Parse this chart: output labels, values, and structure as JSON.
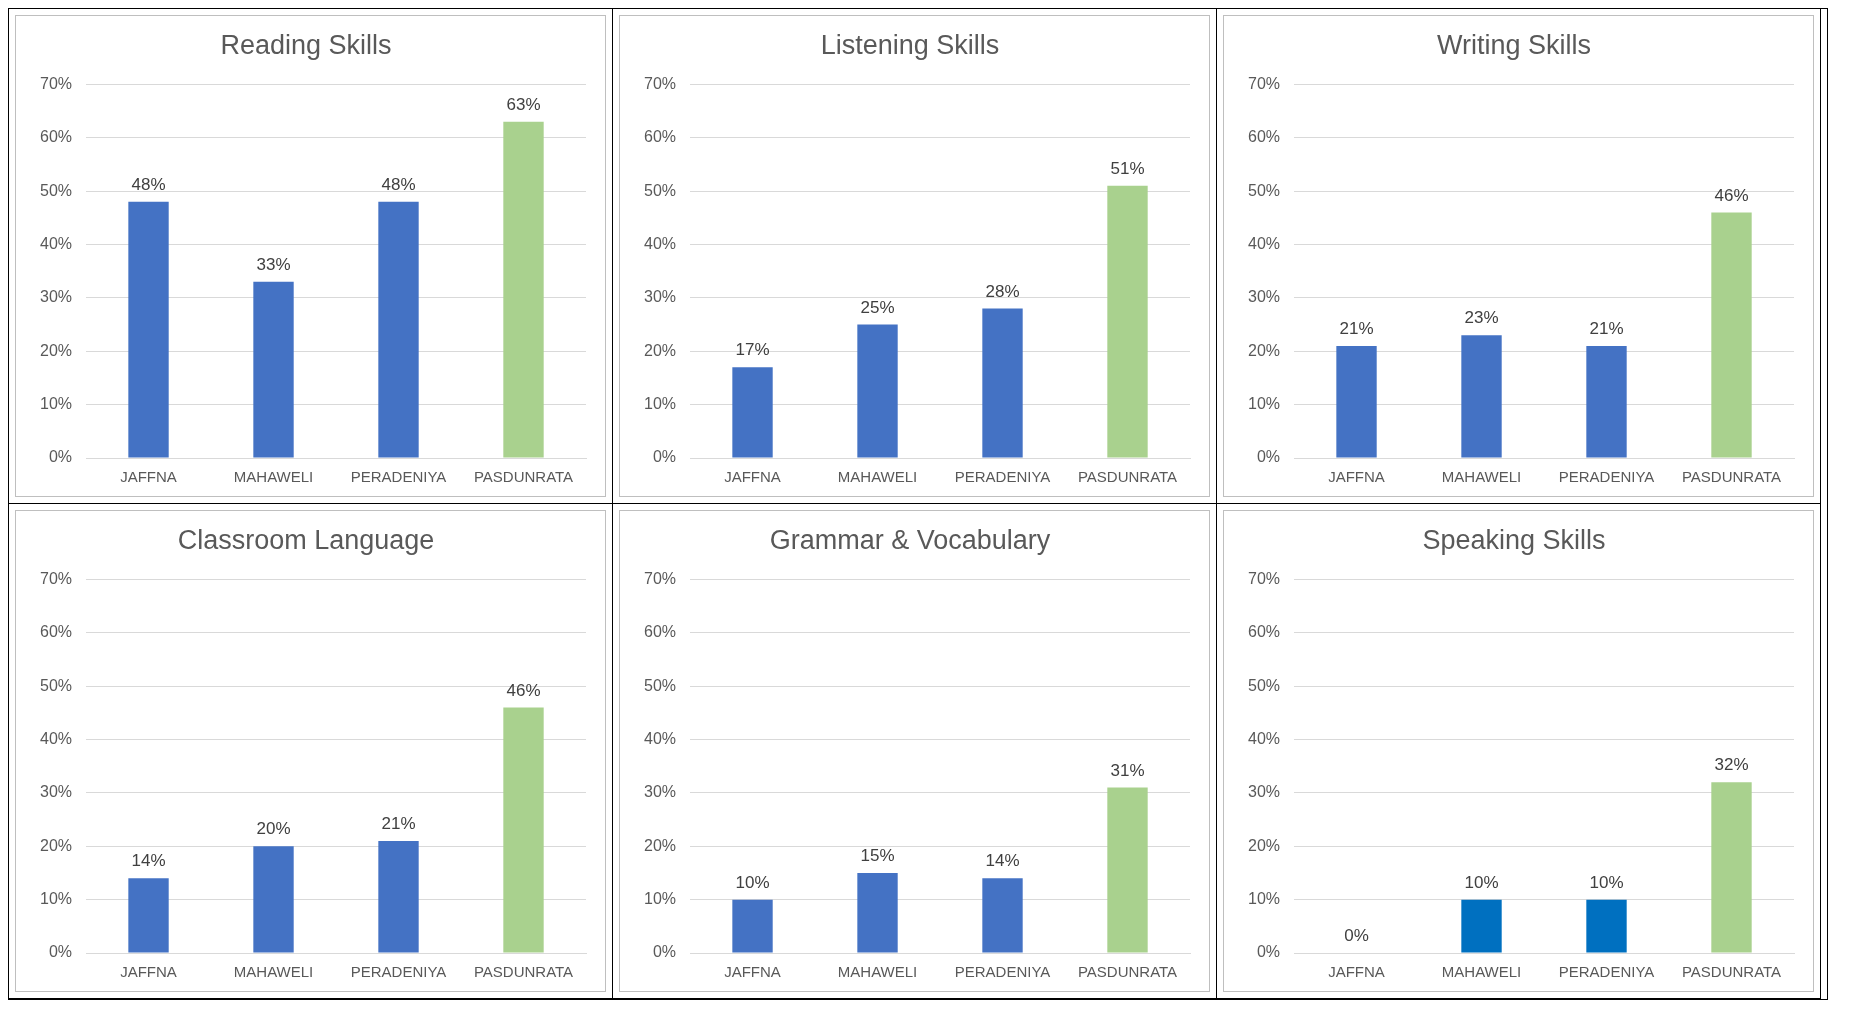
{
  "chart_data": [
    {
      "type": "bar",
      "title": "Reading Skills",
      "categories": [
        "JAFFNA",
        "MAHAWELI",
        "PERADENIYA",
        "PASDUNRATA"
      ],
      "values": [
        48,
        33,
        48,
        63
      ],
      "colors": [
        "#4472c4",
        "#4472c4",
        "#4472c4",
        "#a9d18e"
      ],
      "value_labels": [
        "48%",
        "33%",
        "48%",
        "63%"
      ],
      "ylim": [
        0,
        70
      ],
      "yticks": [
        {
          "value": 0,
          "label": "0%"
        },
        {
          "value": 10,
          "label": "10%"
        },
        {
          "value": 20,
          "label": "20%"
        },
        {
          "value": 30,
          "label": "30%"
        },
        {
          "value": 40,
          "label": "40%"
        },
        {
          "value": 50,
          "label": "50%"
        },
        {
          "value": 60,
          "label": "60%"
        },
        {
          "value": 70,
          "label": "70%"
        }
      ],
      "grid": "y",
      "legend": false
    },
    {
      "type": "bar",
      "title": "Listening Skills",
      "categories": [
        "JAFFNA",
        "MAHAWELI",
        "PERADENIYA",
        "PASDUNRATA"
      ],
      "values": [
        17,
        25,
        28,
        51
      ],
      "colors": [
        "#4472c4",
        "#4472c4",
        "#4472c4",
        "#a9d18e"
      ],
      "value_labels": [
        "17%",
        "25%",
        "28%",
        "51%"
      ],
      "ylim": [
        0,
        70
      ],
      "yticks": [
        {
          "value": 0,
          "label": "0%"
        },
        {
          "value": 10,
          "label": "10%"
        },
        {
          "value": 20,
          "label": "20%"
        },
        {
          "value": 30,
          "label": "30%"
        },
        {
          "value": 40,
          "label": "40%"
        },
        {
          "value": 50,
          "label": "50%"
        },
        {
          "value": 60,
          "label": "60%"
        },
        {
          "value": 70,
          "label": "70%"
        }
      ],
      "grid": "y",
      "legend": false
    },
    {
      "type": "bar",
      "title": "Writing Skills",
      "categories": [
        "JAFFNA",
        "MAHAWELI",
        "PERADENIYA",
        "PASDUNRATA"
      ],
      "values": [
        21,
        23,
        21,
        46
      ],
      "colors": [
        "#4472c4",
        "#4472c4",
        "#4472c4",
        "#a9d18e"
      ],
      "value_labels": [
        "21%",
        "23%",
        "21%",
        "46%"
      ],
      "ylim": [
        0,
        70
      ],
      "yticks": [
        {
          "value": 0,
          "label": "0%"
        },
        {
          "value": 10,
          "label": "10%"
        },
        {
          "value": 20,
          "label": "20%"
        },
        {
          "value": 30,
          "label": "30%"
        },
        {
          "value": 40,
          "label": "40%"
        },
        {
          "value": 50,
          "label": "50%"
        },
        {
          "value": 60,
          "label": "60%"
        },
        {
          "value": 70,
          "label": "70%"
        }
      ],
      "grid": "y",
      "legend": false
    },
    {
      "type": "bar",
      "title": "Classroom Language",
      "categories": [
        "JAFFNA",
        "MAHAWELI",
        "PERADENIYA",
        "PASDUNRATA"
      ],
      "values": [
        14,
        20,
        21,
        46
      ],
      "colors": [
        "#4472c4",
        "#4472c4",
        "#4472c4",
        "#a9d18e"
      ],
      "value_labels": [
        "14%",
        "20%",
        "21%",
        "46%"
      ],
      "ylim": [
        0,
        70
      ],
      "yticks": [
        {
          "value": 0,
          "label": "0%"
        },
        {
          "value": 10,
          "label": "10%"
        },
        {
          "value": 20,
          "label": "20%"
        },
        {
          "value": 30,
          "label": "30%"
        },
        {
          "value": 40,
          "label": "40%"
        },
        {
          "value": 50,
          "label": "50%"
        },
        {
          "value": 60,
          "label": "60%"
        },
        {
          "value": 70,
          "label": "70%"
        }
      ],
      "grid": "y",
      "legend": false
    },
    {
      "type": "bar",
      "title": "Grammar & Vocabulary",
      "categories": [
        "JAFFNA",
        "MAHAWELI",
        "PERADENIYA",
        "PASDUNRATA"
      ],
      "values": [
        10,
        15,
        14,
        31
      ],
      "colors": [
        "#4472c4",
        "#4472c4",
        "#4472c4",
        "#a9d18e"
      ],
      "value_labels": [
        "10%",
        "15%",
        "14%",
        "31%"
      ],
      "ylim": [
        0,
        70
      ],
      "yticks": [
        {
          "value": 0,
          "label": "0%"
        },
        {
          "value": 10,
          "label": "10%"
        },
        {
          "value": 20,
          "label": "20%"
        },
        {
          "value": 30,
          "label": "30%"
        },
        {
          "value": 40,
          "label": "40%"
        },
        {
          "value": 50,
          "label": "50%"
        },
        {
          "value": 60,
          "label": "60%"
        },
        {
          "value": 70,
          "label": "70%"
        }
      ],
      "grid": "y",
      "legend": false
    },
    {
      "type": "bar",
      "title": "Speaking Skills",
      "categories": [
        "JAFFNA",
        "MAHAWELI",
        "PERADENIYA",
        "PASDUNRATA"
      ],
      "values": [
        0,
        10,
        10,
        32
      ],
      "colors": [
        "#0070c0",
        "#0070c0",
        "#0070c0",
        "#a9d18e"
      ],
      "value_labels": [
        "0%",
        "10%",
        "10%",
        "32%"
      ],
      "ylim": [
        0,
        70
      ],
      "yticks": [
        {
          "value": 0,
          "label": "0%"
        },
        {
          "value": 10,
          "label": "10%"
        },
        {
          "value": 20,
          "label": "20%"
        },
        {
          "value": 30,
          "label": "30%"
        },
        {
          "value": 40,
          "label": "40%"
        },
        {
          "value": 50,
          "label": "50%"
        },
        {
          "value": 60,
          "label": "60%"
        },
        {
          "value": 70,
          "label": "70%"
        }
      ],
      "grid": "y",
      "legend": false
    }
  ]
}
